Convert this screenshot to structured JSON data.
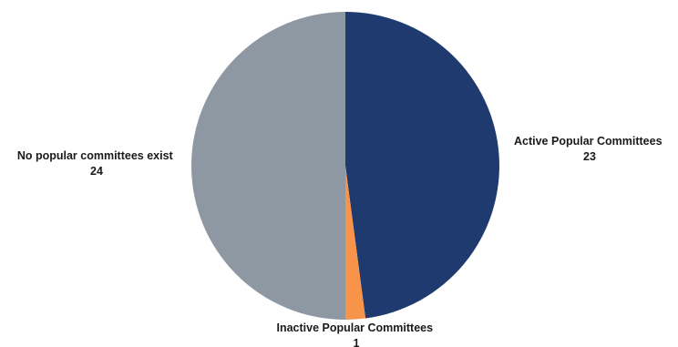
{
  "chart_data": {
    "type": "pie",
    "title": "",
    "legend": "none",
    "slices": [
      {
        "label": "Active Popular Committees",
        "value": 23,
        "value_label": "23",
        "color": "#1f3a6e"
      },
      {
        "label": "Inactive Popular Committees",
        "value": 1,
        "value_label": "1",
        "color": "#f7944a"
      },
      {
        "label": "No popular committees exist",
        "value": 24,
        "value_label": "24",
        "color": "#8e98a3"
      }
    ]
  }
}
